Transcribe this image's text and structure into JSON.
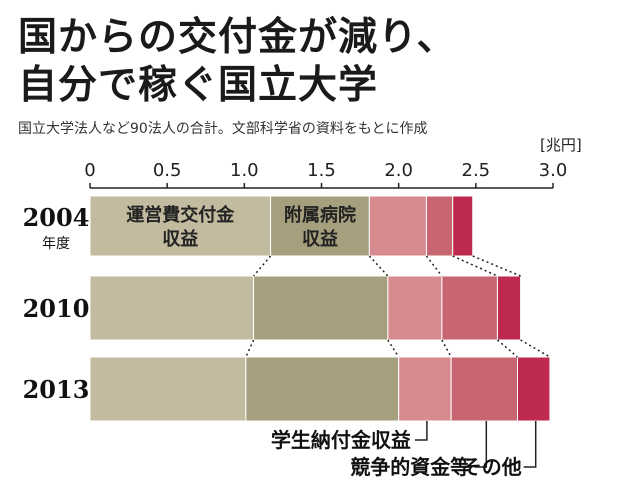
{
  "title_lines": [
    "国からの交付金が減り、",
    "自分で稼ぐ国立大学"
  ],
  "subtitle": "国立大学法人など90法人の合計。文部科学省の資料をもとに作成",
  "chart_data": {
    "type": "bar",
    "orientation": "horizontal",
    "stacked": true,
    "unit": "[兆円]",
    "xlim": [
      0,
      3.0
    ],
    "x_ticks": [
      "0",
      "0.5",
      "1.0",
      "1.5",
      "2.0",
      "2.5",
      "3.0"
    ],
    "categories": [
      {
        "year": "2004",
        "suffix": "年度"
      },
      {
        "year": "2010",
        "suffix": ""
      },
      {
        "year": "2013",
        "suffix": ""
      }
    ],
    "series": [
      {
        "name": "運営費交付金収益",
        "label_lines": [
          "運営費交付金",
          "収益"
        ],
        "color": "#c2bb9f",
        "values": [
          1.17,
          1.06,
          1.01
        ]
      },
      {
        "name": "附属病院収益",
        "label_lines": [
          "附属病院",
          "収益"
        ],
        "color": "#a59f7d",
        "values": [
          0.64,
          0.87,
          0.99
        ]
      },
      {
        "name": "学生納付金収益",
        "color": "#d88b8f",
        "values": [
          0.37,
          0.35,
          0.34
        ]
      },
      {
        "name": "競争的資金等",
        "color": "#c76670",
        "values": [
          0.17,
          0.36,
          0.43
        ]
      },
      {
        "name": "その他",
        "color": "#bd2a4e",
        "values": [
          0.13,
          0.15,
          0.21
        ]
      }
    ],
    "bottom_labels": [
      "学生納付金収益",
      "競争的資金等",
      "その他"
    ],
    "grid": false
  }
}
